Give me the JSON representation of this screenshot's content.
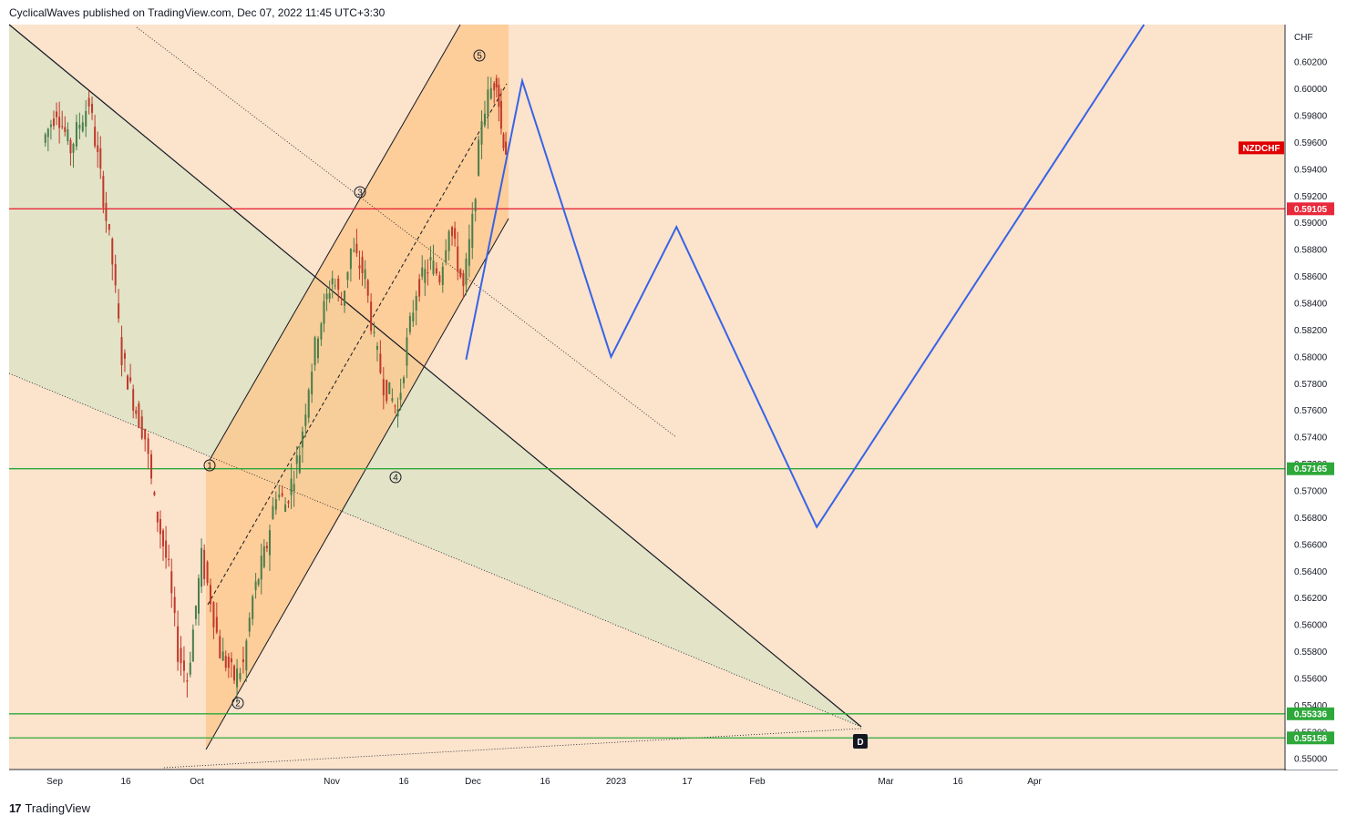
{
  "header": {
    "publish_line": "CyclicalWaves published on TradingView.com, Dec 07, 2022 11:45 UTC+3:30"
  },
  "footer": {
    "brand": "TradingView",
    "logo_glyph": "17"
  },
  "chart_data": {
    "type": "candlestick",
    "symbol": "NZDCHF",
    "currency_label": "CHF",
    "symbol_badge_color": "#e00000",
    "background_color": "#fbe3cc",
    "x_ticks": [
      "Sep",
      "16",
      "Oct",
      "Nov",
      "16",
      "Dec",
      "16",
      "2023",
      "17",
      "Feb",
      "Mar",
      "16",
      "Apr"
    ],
    "y_ticks": [
      "0.60200",
      "0.60000",
      "0.59800",
      "0.59600",
      "0.59400",
      "0.59200",
      "0.59000",
      "0.58800",
      "0.58600",
      "0.58400",
      "0.58200",
      "0.58000",
      "0.57800",
      "0.57600",
      "0.57400",
      "0.57200",
      "0.57000",
      "0.56800",
      "0.56600",
      "0.56400",
      "0.56200",
      "0.56000",
      "0.55800",
      "0.55600",
      "0.55400",
      "0.55200",
      "0.55000"
    ],
    "ylim": [
      0.5492,
      0.6048
    ],
    "up_color": "#4a7d4a",
    "down_color": "#c0392b",
    "price_series": [
      {
        "date": "Aug 30",
        "close": 0.596
      },
      {
        "date": "Sep 2",
        "close": 0.5985
      },
      {
        "date": "Sep 5",
        "close": 0.5955
      },
      {
        "date": "Sep 7",
        "close": 0.5975
      },
      {
        "date": "Sep 9",
        "close": 0.599
      },
      {
        "date": "Sep 12",
        "close": 0.592
      },
      {
        "date": "Sep 14",
        "close": 0.587
      },
      {
        "date": "Sep 16",
        "close": 0.58
      },
      {
        "date": "Sep 19",
        "close": 0.576
      },
      {
        "date": "Sep 21",
        "close": 0.574
      },
      {
        "date": "Sep 23",
        "close": 0.569
      },
      {
        "date": "Sep 26",
        "close": 0.564
      },
      {
        "date": "Sep 28",
        "close": 0.558
      },
      {
        "date": "Sep 30",
        "close": 0.556
      },
      {
        "date": "Oct 3",
        "close": 0.565
      },
      {
        "date": "Oct 5",
        "close": 0.562
      },
      {
        "date": "Oct 7",
        "close": 0.558
      },
      {
        "date": "Oct 10",
        "close": 0.556
      },
      {
        "date": "Oct 12",
        "close": 0.557
      },
      {
        "date": "Oct 14",
        "close": 0.562
      },
      {
        "date": "Oct 17",
        "close": 0.566
      },
      {
        "date": "Oct 19",
        "close": 0.57
      },
      {
        "date": "Oct 21",
        "close": 0.569
      },
      {
        "date": "Oct 24",
        "close": 0.573
      },
      {
        "date": "Oct 26",
        "close": 0.578
      },
      {
        "date": "Oct 28",
        "close": 0.582
      },
      {
        "date": "Oct 31",
        "close": 0.586
      },
      {
        "date": "Nov 2",
        "close": 0.584
      },
      {
        "date": "Nov 4",
        "close": 0.588
      },
      {
        "date": "Nov 7",
        "close": 0.586
      },
      {
        "date": "Nov 9",
        "close": 0.581
      },
      {
        "date": "Nov 11",
        "close": 0.578
      },
      {
        "date": "Nov 14",
        "close": 0.576
      },
      {
        "date": "Nov 16",
        "close": 0.581
      },
      {
        "date": "Nov 18",
        "close": 0.585
      },
      {
        "date": "Nov 21",
        "close": 0.587
      },
      {
        "date": "Nov 23",
        "close": 0.586
      },
      {
        "date": "Nov 25",
        "close": 0.59
      },
      {
        "date": "Nov 28",
        "close": 0.585
      },
      {
        "date": "Nov 30",
        "close": 0.59
      },
      {
        "date": "Dec 2",
        "close": 0.598
      },
      {
        "date": "Dec 4",
        "close": 0.6
      },
      {
        "date": "Dec 5",
        "close": 0.601
      },
      {
        "date": "Dec 6",
        "close": 0.597
      },
      {
        "date": "Dec 7",
        "close": 0.5955
      }
    ],
    "price_lines": [
      {
        "label": "0.59105",
        "value": 0.59105,
        "color": "#e8293b"
      },
      {
        "label": "0.57165",
        "value": 0.57165,
        "color": "#2ea83a"
      },
      {
        "label": "0.55336",
        "value": 0.55336,
        "color": "#2ea83a"
      },
      {
        "label": "0.55156",
        "value": 0.55156,
        "color": "#2ea83a"
      }
    ],
    "wave_labels": [
      "1",
      "2",
      "3",
      "4",
      "5"
    ],
    "pattern_label": "D",
    "projection": {
      "color": "#3763e6",
      "points": [
        {
          "date": "Nov 28",
          "value": 0.5798
        },
        {
          "date": "Dec 10",
          "value": 0.6006
        },
        {
          "date": "Dec 29",
          "value": 0.58
        },
        {
          "date": "Jan 12",
          "value": 0.5897
        },
        {
          "date": "Feb 11",
          "value": 0.5673
        },
        {
          "date": "Apr 22",
          "value": 0.6048
        }
      ]
    }
  }
}
